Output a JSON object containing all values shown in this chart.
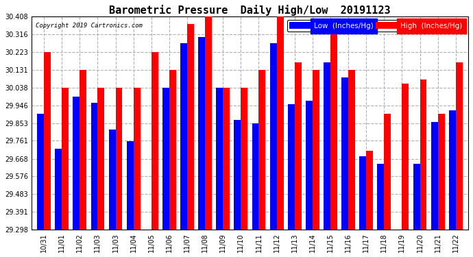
{
  "title": "Barometric Pressure  Daily High/Low  20191123",
  "copyright": "Copyright 2019 Cartronics.com",
  "legend_low": "Low  (Inches/Hg)",
  "legend_high": "High  (Inches/Hg)",
  "ylim": [
    29.298,
    30.408
  ],
  "yticks": [
    29.298,
    29.391,
    29.483,
    29.576,
    29.668,
    29.761,
    29.853,
    29.946,
    30.038,
    30.131,
    30.223,
    30.316,
    30.408
  ],
  "categories": [
    "10/31",
    "11/01",
    "11/02",
    "11/03",
    "11/03",
    "11/04",
    "11/05",
    "11/06",
    "11/07",
    "11/08",
    "11/09",
    "11/10",
    "11/11",
    "11/12",
    "11/13",
    "11/14",
    "11/15",
    "11/16",
    "11/17",
    "11/18",
    "11/19",
    "11/20",
    "11/21",
    "11/22"
  ],
  "high_values": [
    30.223,
    30.038,
    30.131,
    30.038,
    30.038,
    30.038,
    30.223,
    30.131,
    30.37,
    30.408,
    30.038,
    30.038,
    30.131,
    30.408,
    30.17,
    30.131,
    30.34,
    30.131,
    29.71,
    29.9,
    30.06,
    30.08,
    29.9,
    30.17
  ],
  "low_values": [
    29.9,
    29.72,
    29.99,
    29.96,
    29.82,
    29.76,
    29.298,
    30.038,
    30.27,
    30.3,
    30.038,
    29.87,
    29.85,
    30.27,
    29.95,
    29.97,
    30.17,
    30.09,
    29.68,
    29.64,
    29.298,
    29.64,
    29.86,
    29.92
  ],
  "high_color": "#ff0000",
  "low_color": "#0000ff",
  "bg_color": "#ffffff",
  "plot_bg_color": "#ffffff",
  "grid_color": "#b0b0b0",
  "bar_width": 0.38,
  "title_fontsize": 11,
  "tick_fontsize": 7,
  "legend_fontsize": 7.5,
  "ybase": 29.298
}
